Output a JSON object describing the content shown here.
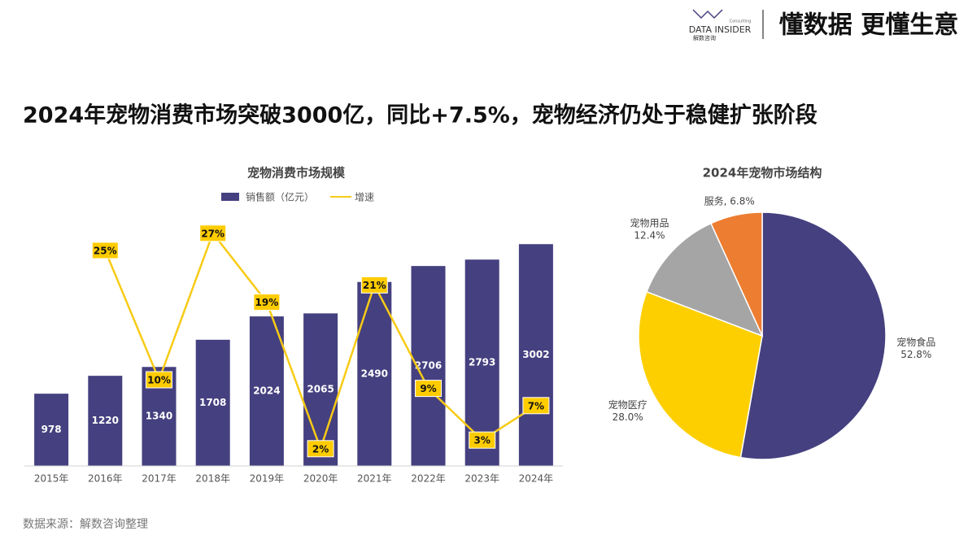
{
  "header": {
    "logo": "DATA INSIDER",
    "logo_note": "Consulting",
    "logo_cn": "解数咨询",
    "slogan": "懂数据 更懂生意"
  },
  "title": "2024年宠物消费市场突破3000亿，同比+7.5%，宠物经济仍处于稳健扩张阶段",
  "source": "数据来源：解数咨询整理",
  "chart_data": [
    {
      "type": "bar",
      "title": "宠物消费市场规模",
      "categories": [
        "2015年",
        "2016年",
        "2017年",
        "2018年",
        "2019年",
        "2020年",
        "2021年",
        "2022年",
        "2023年",
        "2024年"
      ],
      "series": [
        {
          "name": "销售额（亿元）",
          "color": "#45407f",
          "values": [
            978,
            1220,
            1340,
            1708,
            2024,
            2065,
            2490,
            2706,
            2793,
            3002
          ]
        },
        {
          "name": "增速",
          "color": "#f7cb15",
          "axis": "y2",
          "values": [
            null,
            25,
            10,
            27,
            19,
            2,
            21,
            9,
            3,
            7
          ],
          "value_labels": [
            null,
            "25%",
            "10%",
            "27%",
            "19%",
            "2%",
            "21%",
            "9%",
            "3%",
            "7%"
          ]
        }
      ],
      "ylim": [
        0,
        3500
      ],
      "y2lim": [
        0,
        30
      ]
    },
    {
      "type": "pie",
      "title": "2024年宠物市场结构",
      "categories": [
        "宠物食品",
        "宠物医疗",
        "宠物用品",
        "服务"
      ],
      "values": [
        52.8,
        28.0,
        12.4,
        6.8
      ],
      "value_labels": [
        "52.8%",
        "28.0%",
        "12.4%",
        ", 6.8%"
      ],
      "colors": [
        "#45407f",
        "#fdcf00",
        "#a5a5a5",
        "#ed7d31"
      ]
    }
  ]
}
